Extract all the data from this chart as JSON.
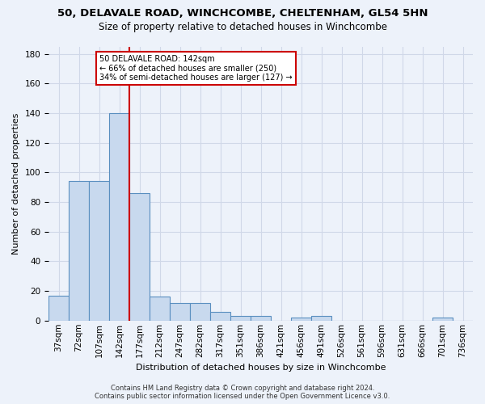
{
  "title_line1": "50, DELAVALE ROAD, WINCHCOMBE, CHELTENHAM, GL54 5HN",
  "title_line2": "Size of property relative to detached houses in Winchcombe",
  "xlabel": "Distribution of detached houses by size in Winchcombe",
  "ylabel": "Number of detached properties",
  "bin_labels": [
    "37sqm",
    "72sqm",
    "107sqm",
    "142sqm",
    "177sqm",
    "212sqm",
    "247sqm",
    "282sqm",
    "317sqm",
    "351sqm",
    "386sqm",
    "421sqm",
    "456sqm",
    "491sqm",
    "526sqm",
    "561sqm",
    "596sqm",
    "631sqm",
    "666sqm",
    "701sqm",
    "736sqm"
  ],
  "bar_values": [
    17,
    94,
    94,
    140,
    86,
    16,
    12,
    12,
    6,
    3,
    3,
    0,
    2,
    3,
    0,
    0,
    0,
    0,
    0,
    2,
    0
  ],
  "bar_color": "#c8d9ee",
  "bar_edge_color": "#5a8fc0",
  "ylim": [
    0,
    185
  ],
  "yticks": [
    0,
    20,
    40,
    60,
    80,
    100,
    120,
    140,
    160,
    180
  ],
  "vline_x_index": 3,
  "vline_color": "#cc0000",
  "annotation_text": "50 DELAVALE ROAD: 142sqm\n← 66% of detached houses are smaller (250)\n34% of semi-detached houses are larger (127) →",
  "annotation_box_color": "#ffffff",
  "annotation_box_edge": "#cc0000",
  "footnote": "Contains HM Land Registry data © Crown copyright and database right 2024.\nContains public sector information licensed under the Open Government Licence v3.0.",
  "background_color": "#edf2fa",
  "grid_color": "#d0d8e8",
  "title_fontsize": 9.5,
  "subtitle_fontsize": 8.5,
  "xlabel_fontsize": 8.0,
  "ylabel_fontsize": 8.0,
  "tick_fontsize": 7.5,
  "footnote_fontsize": 6.0
}
